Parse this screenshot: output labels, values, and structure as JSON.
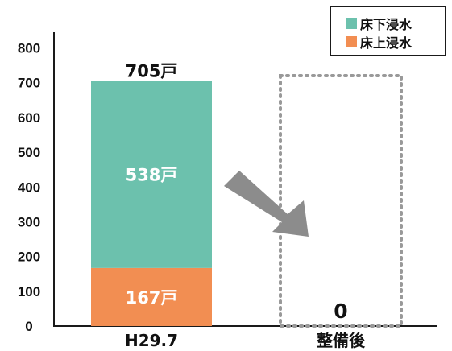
{
  "chart_data": {
    "type": "bar",
    "stacked": true,
    "categories": [
      "H29.7",
      "整備後"
    ],
    "series": [
      {
        "name": "床上浸水",
        "values": [
          167,
          0
        ],
        "color": "#f28e52",
        "labels": [
          "167戸",
          ""
        ]
      },
      {
        "name": "床下浸水",
        "values": [
          538,
          0
        ],
        "color": "#6cc1ad",
        "labels": [
          "538戸",
          ""
        ]
      }
    ],
    "totals": [
      "705戸",
      "0"
    ],
    "ylim": [
      0,
      800
    ],
    "yticks": [
      "0",
      "100",
      "200",
      "300",
      "400",
      "500",
      "600",
      "700",
      "800"
    ],
    "grid": false,
    "legend_position": "top-right",
    "legend": [
      {
        "label": "床下浸水",
        "color": "#6cc1ad"
      },
      {
        "label": "床上浸水",
        "color": "#f28e52"
      }
    ],
    "annotations": {
      "arrow_color": "#8c8c8c",
      "placeholder_outline_color": "#999999"
    }
  }
}
